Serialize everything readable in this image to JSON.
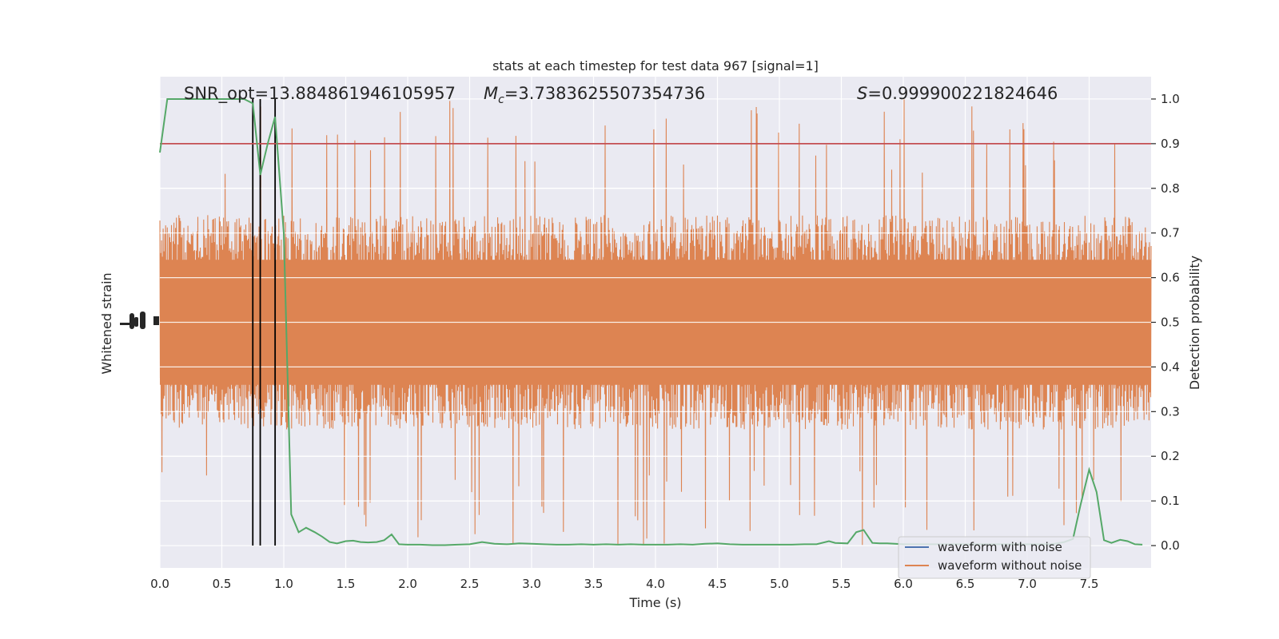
{
  "chart_data": {
    "type": "line",
    "title": "stats at each timestep for test data 967 [signal=1]",
    "xlabel": "Time (s)",
    "ylabel_left": "Whitened strain",
    "ylabel_right": "Detection probability",
    "xlim": [
      0.0,
      8.0
    ],
    "ylim_right": [
      -0.05,
      1.05
    ],
    "x_ticks": [
      "0.0",
      "0.5",
      "1.0",
      "1.5",
      "2.0",
      "2.5",
      "3.0",
      "3.5",
      "4.0",
      "4.5",
      "5.0",
      "5.5",
      "6.0",
      "6.5",
      "7.0",
      "7.5"
    ],
    "y_right_ticks": [
      "0.0",
      "0.1",
      "0.2",
      "0.3",
      "0.4",
      "0.5",
      "0.6",
      "0.7",
      "0.8",
      "0.9",
      "1.0"
    ],
    "grid": true,
    "annotations": {
      "snr": "SNR_opt=13.884861946105957",
      "mc_symbol": "M",
      "mc_sub": "c",
      "mc_value": "=3.7383625507354736",
      "s_symbol": "S",
      "s_value": "=0.999900221824646"
    },
    "threshold": 0.9,
    "vertical_markers": [
      0.75,
      0.81,
      0.93
    ],
    "noise_band": {
      "center": 0.5,
      "typical_half_width": 0.2,
      "peak_max": 1.0,
      "peak_min": 0.0
    },
    "series": [
      {
        "name": "waveform with noise",
        "color": "#4c72b0"
      },
      {
        "name": "waveform without noise",
        "color": "#dd8452"
      },
      {
        "color": "#55a868",
        "x": [
          0.0,
          0.06,
          0.12,
          0.2,
          0.3,
          0.4,
          0.5,
          0.6,
          0.68,
          0.75,
          0.81,
          0.87,
          0.93,
          1.0,
          1.06,
          1.12,
          1.18,
          1.25,
          1.31,
          1.37,
          1.43,
          1.5,
          1.56,
          1.62,
          1.68,
          1.75,
          1.81,
          1.87,
          1.93,
          2.0,
          2.1,
          2.2,
          2.3,
          2.4,
          2.5,
          2.6,
          2.7,
          2.8,
          2.9,
          3.0,
          3.1,
          3.2,
          3.3,
          3.4,
          3.5,
          3.6,
          3.7,
          3.8,
          3.9,
          4.0,
          4.1,
          4.2,
          4.3,
          4.4,
          4.5,
          4.6,
          4.7,
          4.8,
          4.9,
          5.0,
          5.1,
          5.2,
          5.3,
          5.4,
          5.45,
          5.55,
          5.62,
          5.68,
          5.75,
          5.81,
          5.87,
          5.93,
          6.0,
          6.1,
          6.2,
          6.3,
          6.4,
          6.5,
          6.6,
          6.7,
          6.8,
          6.9,
          7.0,
          7.1,
          7.2,
          7.3,
          7.37,
          7.43,
          7.5,
          7.56,
          7.62,
          7.68,
          7.75,
          7.81,
          7.87,
          7.93
        ],
        "y": [
          0.88,
          1.0,
          1.0,
          1.0,
          1.0,
          1.0,
          1.0,
          1.0,
          1.0,
          0.99,
          0.83,
          0.9,
          0.96,
          0.7,
          0.07,
          0.03,
          0.04,
          0.03,
          0.02,
          0.008,
          0.005,
          0.01,
          0.011,
          0.008,
          0.007,
          0.008,
          0.012,
          0.025,
          0.003,
          0.002,
          0.002,
          0.001,
          0.001,
          0.002,
          0.003,
          0.008,
          0.004,
          0.003,
          0.005,
          0.004,
          0.003,
          0.002,
          0.002,
          0.003,
          0.002,
          0.003,
          0.002,
          0.003,
          0.002,
          0.002,
          0.002,
          0.003,
          0.002,
          0.004,
          0.005,
          0.003,
          0.002,
          0.002,
          0.002,
          0.002,
          0.002,
          0.003,
          0.003,
          0.01,
          0.006,
          0.005,
          0.03,
          0.035,
          0.006,
          0.005,
          0.005,
          0.004,
          0.003,
          0.003,
          0.003,
          0.003,
          0.003,
          0.003,
          0.003,
          0.003,
          0.003,
          0.003,
          0.003,
          0.003,
          0.003,
          0.008,
          0.015,
          0.09,
          0.17,
          0.12,
          0.012,
          0.006,
          0.013,
          0.01,
          0.003,
          0.002
        ]
      }
    ]
  }
}
